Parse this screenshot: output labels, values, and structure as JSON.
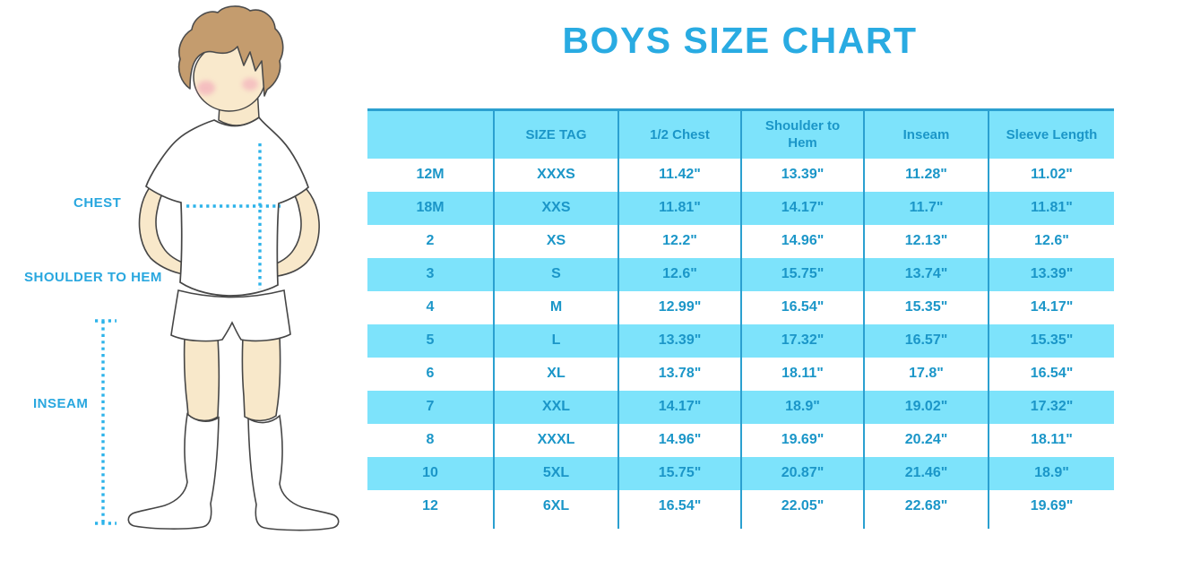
{
  "title": "BOYS SIZE CHART",
  "colors": {
    "title_blue": "#29ABE2",
    "label_blue": "#29A7DF",
    "table_text_blue": "#1B96C8",
    "table_band_cyan": "#7DE3FB",
    "table_line_blue": "#2BA0D0",
    "dotted_line_cyan": "#2DB3EA",
    "skin": "#F8E8CA",
    "hair_brown": "#C49C6E",
    "cheek_pink": "#F2A3B8"
  },
  "figure": {
    "description": "outline illustration of a boy in white t-shirt, shorts and knee socks with dotted measurement guides",
    "labels": {
      "chest": "CHEST",
      "shoulder_to_hem": "SHOULDER TO HEM",
      "inseam": "INSEAM"
    }
  },
  "chart_data": {
    "type": "table",
    "title": "BOYS SIZE CHART",
    "units": "inches",
    "columns": [
      "",
      "SIZE TAG",
      "1/2 Chest",
      "Shoulder to Hem",
      "Inseam",
      "Sleeve Length"
    ],
    "rows": [
      [
        "12M",
        "XXXS",
        "11.42\"",
        "13.39\"",
        "11.28\"",
        "11.02\""
      ],
      [
        "18M",
        "XXS",
        "11.81\"",
        "14.17\"",
        "11.7\"",
        "11.81\""
      ],
      [
        "2",
        "XS",
        "12.2\"",
        "14.96\"",
        "12.13\"",
        "12.6\""
      ],
      [
        "3",
        "S",
        "12.6\"",
        "15.75\"",
        "13.74\"",
        "13.39\""
      ],
      [
        "4",
        "M",
        "12.99\"",
        "16.54\"",
        "15.35\"",
        "14.17\""
      ],
      [
        "5",
        "L",
        "13.39\"",
        "17.32\"",
        "16.57\"",
        "15.35\""
      ],
      [
        "6",
        "XL",
        "13.78\"",
        "18.11\"",
        "17.8\"",
        "16.54\""
      ],
      [
        "7",
        "XXL",
        "14.17\"",
        "18.9\"",
        "19.02\"",
        "17.32\""
      ],
      [
        "8",
        "XXXL",
        "14.96\"",
        "19.69\"",
        "20.24\"",
        "18.11\""
      ],
      [
        "10",
        "5XL",
        "15.75\"",
        "20.87\"",
        "21.46\"",
        "18.9\""
      ],
      [
        "12",
        "6XL",
        "16.54\"",
        "22.05\"",
        "22.68\"",
        "19.69\""
      ]
    ],
    "layout": {
      "striped": true,
      "first_data_row": "white",
      "header_background": "#7DE3FB",
      "column_separators": true,
      "top_border": true
    }
  }
}
